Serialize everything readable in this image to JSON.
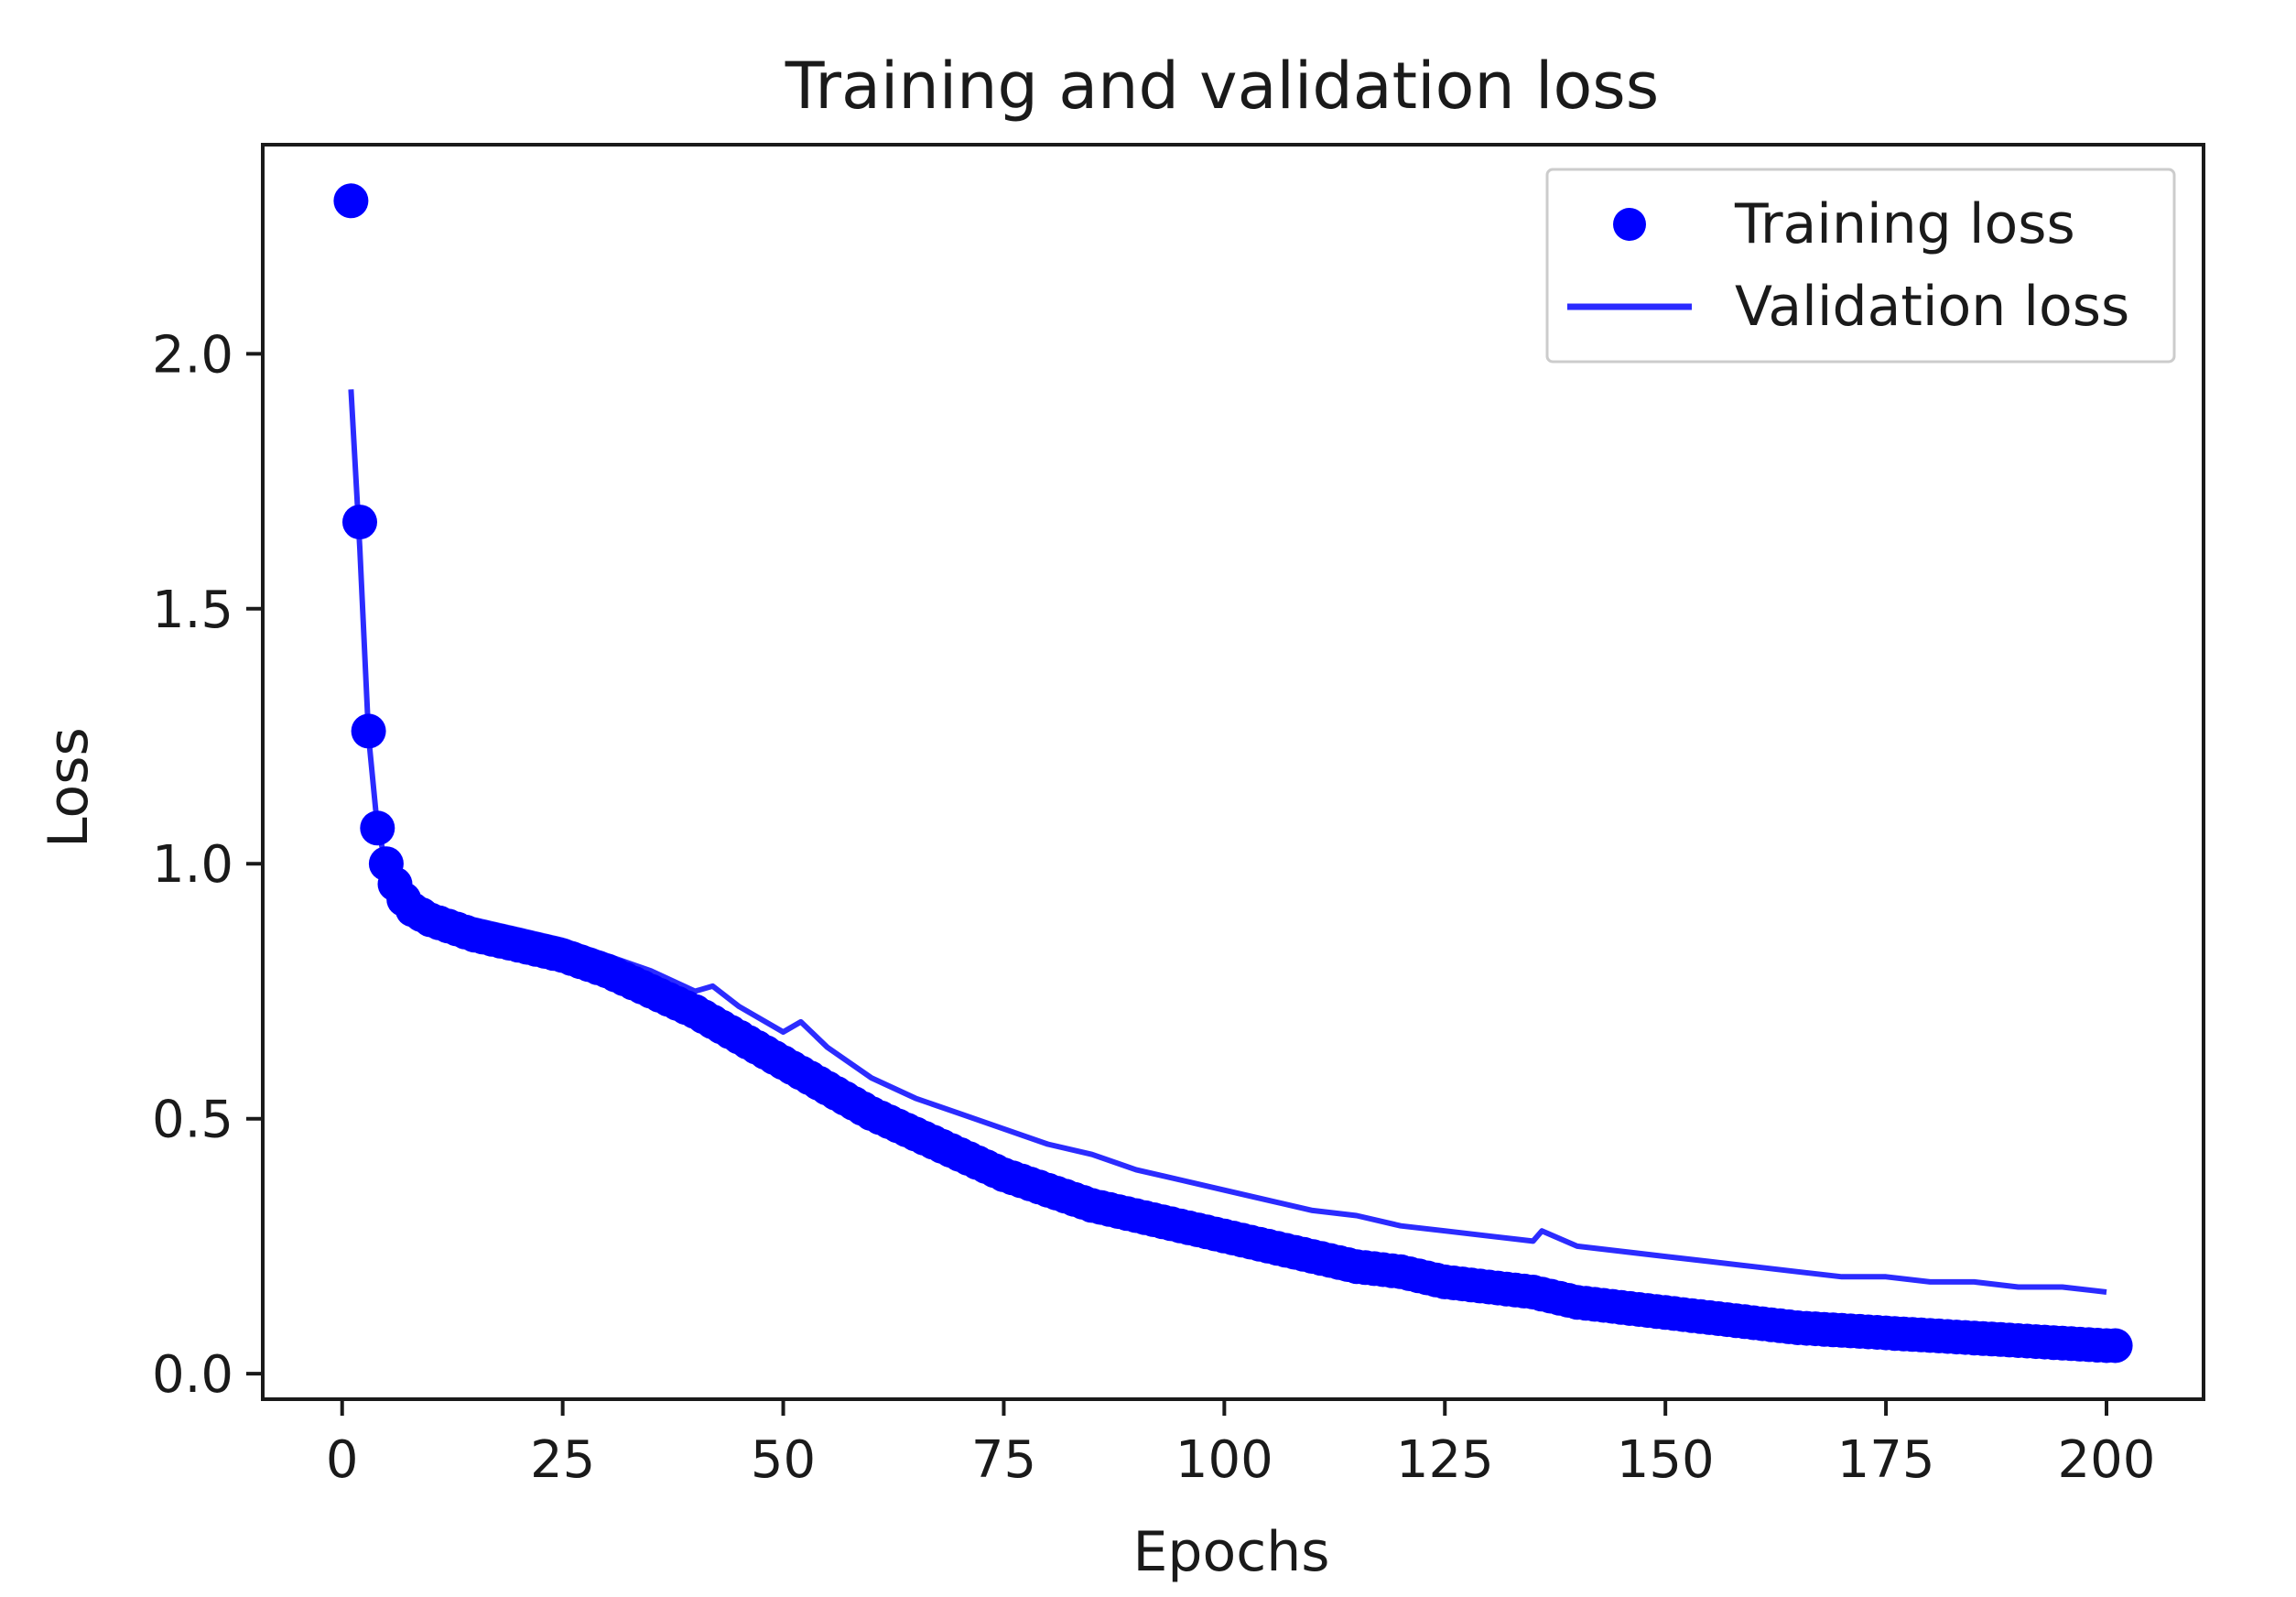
{
  "chart_data": {
    "type": "line",
    "title": "Training and validation loss",
    "xlabel": "Epochs",
    "ylabel": "Loss",
    "xlim": [
      -9,
      211
    ],
    "ylim": [
      -0.05,
      2.41
    ],
    "grid": false,
    "legend_position": "top-right",
    "x_ticks": [
      0,
      25,
      50,
      75,
      100,
      125,
      150,
      175,
      200
    ],
    "x_tick_labels": [
      "0",
      "25",
      "50",
      "75",
      "100",
      "125",
      "150",
      "175",
      "200"
    ],
    "y_ticks": [
      0.0,
      0.5,
      1.0,
      1.5,
      2.0
    ],
    "y_tick_labels": [
      "0.0",
      "0.5",
      "1.0",
      "1.5",
      "2.0"
    ],
    "colors": {
      "training": "#0000ff",
      "validation": "#2b2bff",
      "axes": "#1a1a1a"
    },
    "series": [
      {
        "name": "Training loss",
        "style": "markers",
        "anchors": [
          [
            1,
            2.3
          ],
          [
            2,
            1.67
          ],
          [
            3,
            1.26
          ],
          [
            4,
            1.07
          ],
          [
            5,
            1.0
          ],
          [
            6,
            0.96
          ],
          [
            7,
            0.93
          ],
          [
            8,
            0.91
          ],
          [
            10,
            0.89
          ],
          [
            15,
            0.86
          ],
          [
            20,
            0.84
          ],
          [
            25,
            0.82
          ],
          [
            30,
            0.79
          ],
          [
            35,
            0.75
          ],
          [
            40,
            0.71
          ],
          [
            45,
            0.66
          ],
          [
            50,
            0.61
          ],
          [
            55,
            0.56
          ],
          [
            60,
            0.51
          ],
          [
            65,
            0.47
          ],
          [
            70,
            0.43
          ],
          [
            75,
            0.39
          ],
          [
            80,
            0.36
          ],
          [
            85,
            0.33
          ],
          [
            90,
            0.31
          ],
          [
            95,
            0.29
          ],
          [
            100,
            0.27
          ],
          [
            105,
            0.25
          ],
          [
            110,
            0.23
          ],
          [
            115,
            0.21
          ],
          [
            120,
            0.2
          ],
          [
            125,
            0.18
          ],
          [
            130,
            0.17
          ],
          [
            135,
            0.16
          ],
          [
            140,
            0.14
          ],
          [
            145,
            0.13
          ],
          [
            150,
            0.12
          ],
          [
            155,
            0.11
          ],
          [
            160,
            0.1
          ],
          [
            165,
            0.09
          ],
          [
            170,
            0.085
          ],
          [
            175,
            0.08
          ],
          [
            180,
            0.075
          ],
          [
            185,
            0.07
          ],
          [
            190,
            0.065
          ],
          [
            195,
            0.06
          ],
          [
            200,
            0.055
          ],
          [
            201,
            0.055
          ]
        ]
      },
      {
        "name": "Validation loss",
        "style": "line",
        "points": [
          [
            1,
            1.93
          ],
          [
            2,
            1.62
          ],
          [
            3,
            1.25
          ],
          [
            4,
            1.07
          ],
          [
            5,
            1.0
          ],
          [
            6,
            0.97
          ],
          [
            7,
            0.94
          ],
          [
            8,
            0.93
          ],
          [
            10,
            0.91
          ],
          [
            15,
            0.89
          ],
          [
            20,
            0.87
          ],
          [
            25,
            0.85
          ],
          [
            30,
            0.82
          ],
          [
            35,
            0.79
          ],
          [
            40,
            0.75
          ],
          [
            42,
            0.76
          ],
          [
            45,
            0.72
          ],
          [
            50,
            0.67
          ],
          [
            52,
            0.69
          ],
          [
            55,
            0.64
          ],
          [
            60,
            0.58
          ],
          [
            65,
            0.54
          ],
          [
            70,
            0.51
          ],
          [
            75,
            0.48
          ],
          [
            80,
            0.45
          ],
          [
            85,
            0.43
          ],
          [
            90,
            0.4
          ],
          [
            95,
            0.38
          ],
          [
            100,
            0.36
          ],
          [
            105,
            0.34
          ],
          [
            110,
            0.32
          ],
          [
            115,
            0.31
          ],
          [
            120,
            0.29
          ],
          [
            125,
            0.28
          ],
          [
            130,
            0.27
          ],
          [
            135,
            0.26
          ],
          [
            136,
            0.28
          ],
          [
            140,
            0.25
          ],
          [
            145,
            0.24
          ],
          [
            150,
            0.23
          ],
          [
            155,
            0.22
          ],
          [
            160,
            0.21
          ],
          [
            165,
            0.2
          ],
          [
            170,
            0.19
          ],
          [
            175,
            0.19
          ],
          [
            180,
            0.18
          ],
          [
            185,
            0.18
          ],
          [
            190,
            0.17
          ],
          [
            195,
            0.17
          ],
          [
            200,
            0.16
          ]
        ]
      }
    ]
  }
}
